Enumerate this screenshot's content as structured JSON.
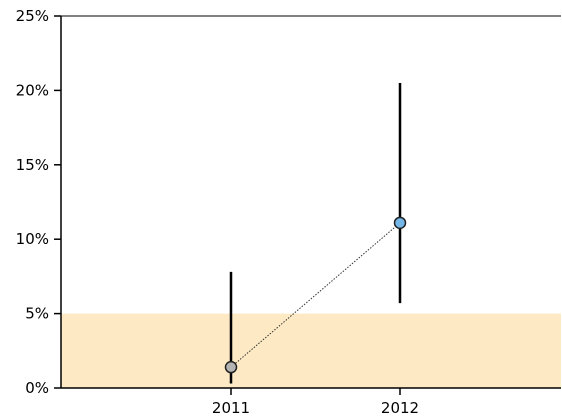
{
  "chart_data": {
    "type": "scatter",
    "title": "",
    "xlabel": "",
    "ylabel": "",
    "x_ticks": [
      "2011",
      "2012"
    ],
    "y_ticks": [
      "0%",
      "5%",
      "10%",
      "15%",
      "20%",
      "25%"
    ],
    "ylim": [
      0,
      25
    ],
    "reference_band": {
      "from": 0,
      "to": 5,
      "color": "#fde9c3"
    },
    "points": [
      {
        "x": "2011",
        "y": 1.4,
        "lower": 0.3,
        "upper": 7.8,
        "color": "#b4b4b4"
      },
      {
        "x": "2012",
        "y": 11.1,
        "lower": 5.7,
        "upper": 20.5,
        "color": "#74b6e6"
      }
    ],
    "connector": {
      "style": "dotted",
      "color": "#333333"
    },
    "grid": false,
    "legend": "none"
  }
}
